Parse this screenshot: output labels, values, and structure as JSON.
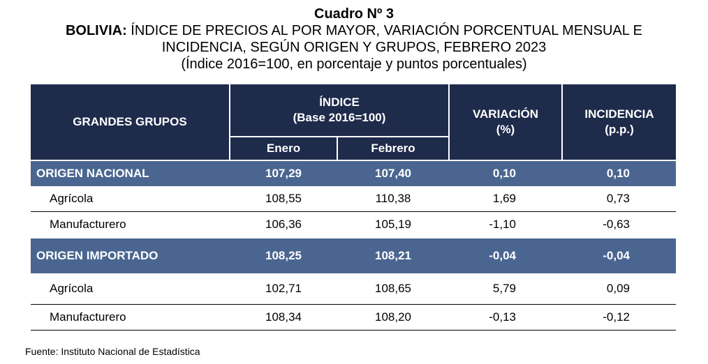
{
  "title": {
    "main": "Cuadro Nº 3",
    "line1_bold": "BOLIVIA:",
    "line1_rest": " ÍNDICE DE PRECIOS AL POR MAYOR, VARIACIÓN PORCENTUAL MENSUAL E",
    "line2": "INCIDENCIA, SEGÚN ORIGEN Y GRUPOS, FEBRERO 2023",
    "line3": "(Índice 2016=100, en porcentaje y puntos porcentuales)"
  },
  "table": {
    "headers": {
      "grupos": "GRANDES GRUPOS",
      "indice": "ÍNDICE",
      "indice_base": "(Base 2016=100)",
      "enero": "Enero",
      "febrero": "Febrero",
      "variacion": "VARIACIÓN",
      "variacion_unit": "(%)",
      "incidencia": "INCIDENCIA",
      "incidencia_unit": "(p.p.)"
    },
    "rows": [
      {
        "name": "ORIGEN NACIONAL",
        "enero": "107,29",
        "febrero": "107,40",
        "variacion": "0,10",
        "incidencia": "0,10"
      },
      {
        "name": "Agrícola",
        "enero": "108,55",
        "febrero": "110,38",
        "variacion": "1,69",
        "incidencia": "0,73"
      },
      {
        "name": "Manufacturero",
        "enero": "106,36",
        "febrero": "105,19",
        "variacion": "-1,10",
        "incidencia": "-0,63"
      },
      {
        "name": "ORIGEN IMPORTADO",
        "enero": "108,25",
        "febrero": "108,21",
        "variacion": "-0,04",
        "incidencia": "-0,04"
      },
      {
        "name": "Agrícola",
        "enero": "102,71",
        "febrero": "108,65",
        "variacion": "5,79",
        "incidencia": "0,09"
      },
      {
        "name": "Manufacturero",
        "enero": "108,34",
        "febrero": "108,20",
        "variacion": "-0,13",
        "incidencia": "-0,12"
      }
    ]
  },
  "source": "Fuente: Instituto Nacional de Estadística",
  "colors": {
    "header": "#1f2b4b",
    "group_row": "#4a6690"
  }
}
